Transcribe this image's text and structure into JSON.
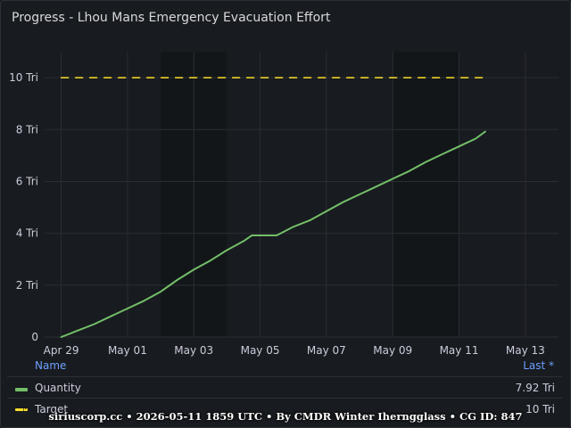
{
  "panel": {
    "title": "Progress - Lhou Mans Emergency Evacuation Effort"
  },
  "chart_data": {
    "type": "line",
    "title": "Progress - Lhou Mans Emergency Evacuation Effort",
    "x_ticks": [
      "Apr 29",
      "May 01",
      "May 03",
      "May 05",
      "May 07",
      "May 09",
      "May 11",
      "May 13"
    ],
    "xlim": [
      "2026-04-28T12:00",
      "2026-05-14T00:00"
    ],
    "y_ticks": [
      "0",
      "2 Tri",
      "4 Tri",
      "6 Tri",
      "8 Tri",
      "10 Tri"
    ],
    "ylim": [
      0,
      11
    ],
    "grid": true,
    "shaded_ranges": [
      [
        "2026-05-02",
        "2026-05-04"
      ],
      [
        "2026-05-09",
        "2026-05-11"
      ]
    ],
    "series": [
      {
        "name": "Quantity",
        "color": "#73bf69",
        "style": "solid",
        "x": [
          "2026-04-29T00:00",
          "2026-04-29T12:00",
          "2026-04-30T00:00",
          "2026-04-30T12:00",
          "2026-05-01T00:00",
          "2026-05-01T12:00",
          "2026-05-02T00:00",
          "2026-05-02T12:00",
          "2026-05-03T00:00",
          "2026-05-03T12:00",
          "2026-05-04T00:00",
          "2026-05-04T12:00",
          "2026-05-04T18:00",
          "2026-05-05T12:00",
          "2026-05-06T00:00",
          "2026-05-06T12:00",
          "2026-05-07T00:00",
          "2026-05-07T12:00",
          "2026-05-08T00:00",
          "2026-05-08T12:00",
          "2026-05-09T00:00",
          "2026-05-09T12:00",
          "2026-05-10T00:00",
          "2026-05-10T12:00",
          "2026-05-11T00:00",
          "2026-05-11T12:00",
          "2026-05-11T19:00"
        ],
        "values": [
          0.0,
          0.25,
          0.5,
          0.8,
          1.1,
          1.4,
          1.75,
          2.2,
          2.6,
          2.95,
          3.35,
          3.7,
          3.92,
          3.92,
          4.25,
          4.5,
          4.85,
          5.2,
          5.5,
          5.8,
          6.1,
          6.4,
          6.75,
          7.05,
          7.35,
          7.65,
          7.92
        ]
      },
      {
        "name": "Target",
        "color": "#fade2a",
        "style": "dashed",
        "x": [
          "2026-04-29T00:00",
          "2026-05-11T19:00"
        ],
        "values": [
          10,
          10
        ]
      }
    ]
  },
  "legend": {
    "name_header": "Name",
    "last_header": "Last *",
    "rows": [
      {
        "name": "Quantity",
        "last": "7.92 Tri",
        "color": "#73bf69"
      },
      {
        "name": "Target",
        "last": "10 Tri",
        "color": "#fade2a"
      }
    ]
  },
  "footer": {
    "text": "siriuscorp.cc • 2026-05-11 1859 UTC • By CMDR Winter Iherngglass • CG ID: 847"
  }
}
